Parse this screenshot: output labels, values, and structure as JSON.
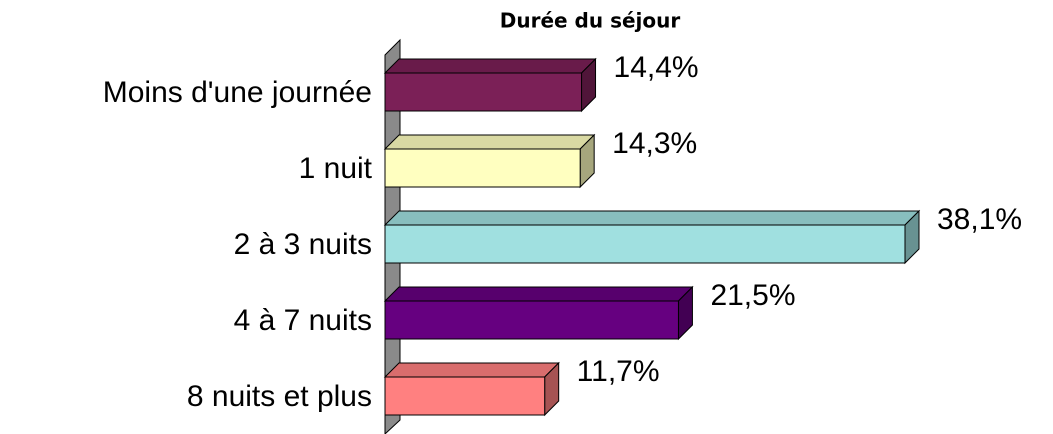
{
  "chart_data": {
    "type": "bar",
    "orientation": "horizontal",
    "title": "Durée du séjour",
    "categories": [
      "Moins d'une journée",
      "1 nuit",
      "2 à 3 nuits",
      "4 à 7 nuits",
      "8 nuits et plus"
    ],
    "values": [
      14.4,
      14.3,
      38.1,
      21.5,
      11.7
    ],
    "value_labels": [
      "14,4%",
      "14,3%",
      "38,1%",
      "21,5%",
      "11,7%"
    ],
    "colors": [
      "#7b2057",
      "#ffffc0",
      "#a0e0e0",
      "#660080",
      "#ff8080"
    ]
  }
}
